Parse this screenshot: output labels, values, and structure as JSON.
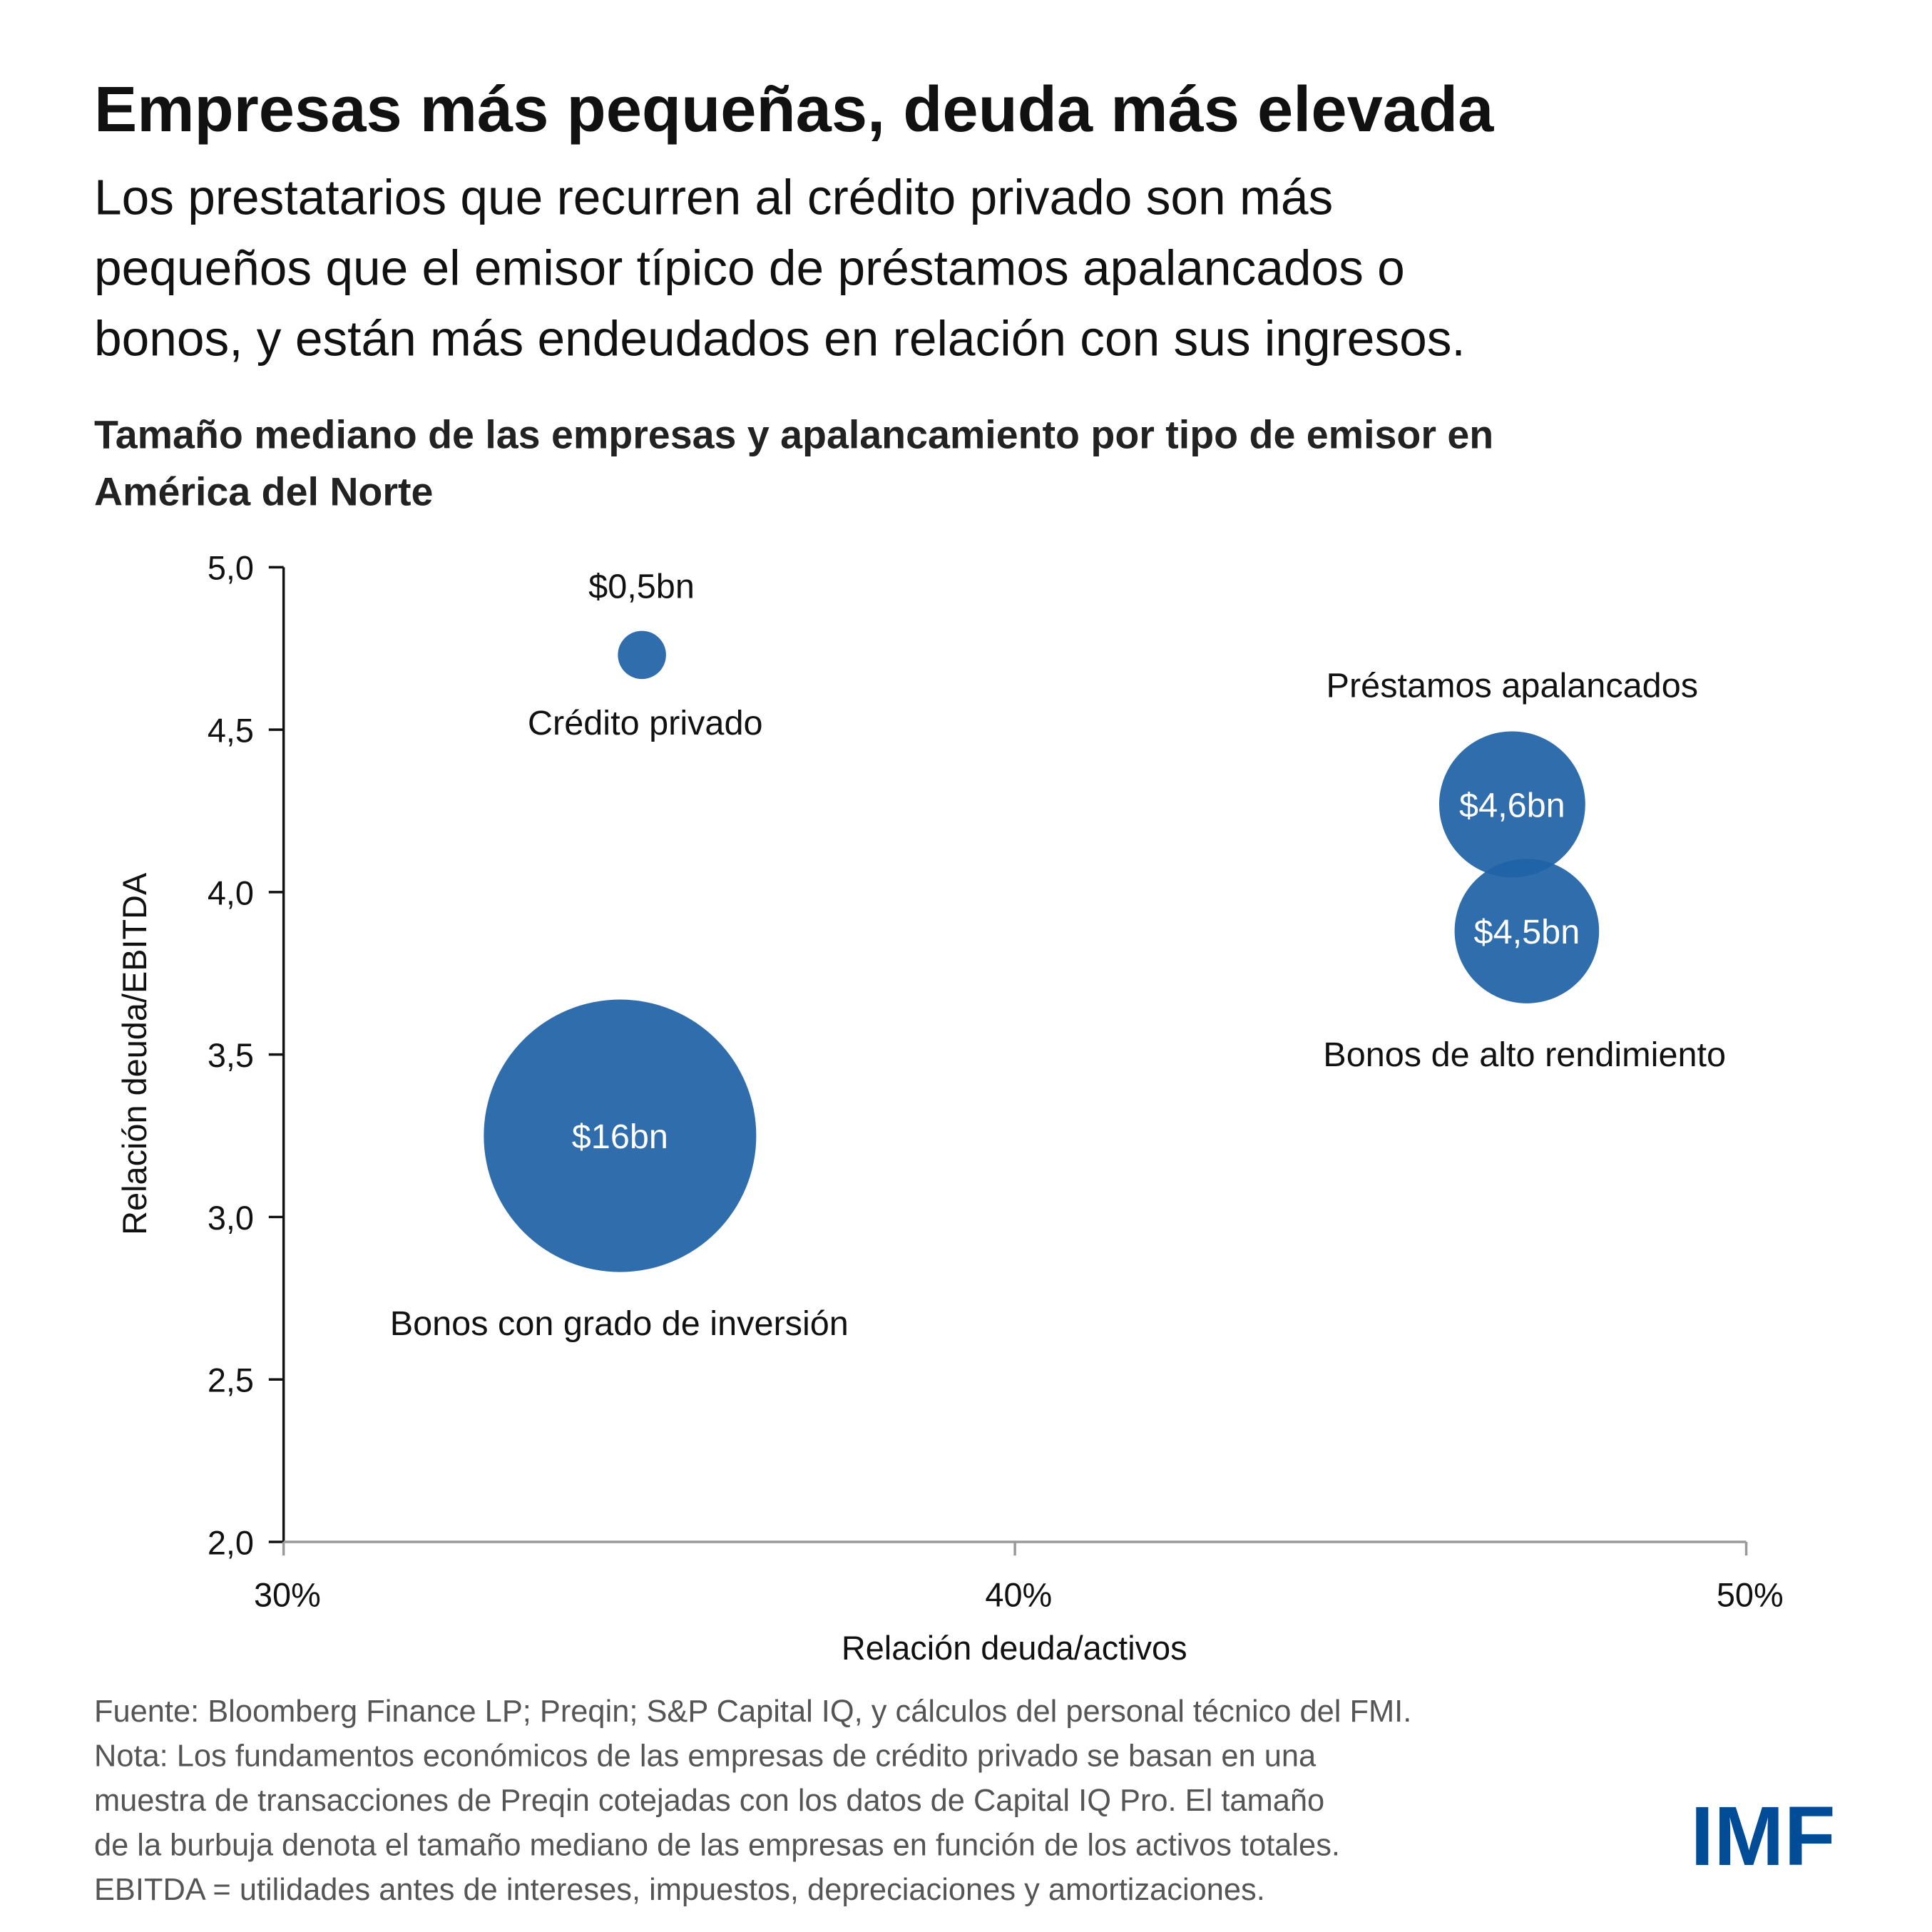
{
  "title": "Empresas más pequeñas, deuda más elevada",
  "subtitle_lines": [
    "Los prestatarios que recurren al crédito privado son más",
    "pequeños que el emisor típico de préstamos apalancados o",
    "bonos, y están más endeudados en relación con sus ingresos."
  ],
  "notes": [
    "Fuente: Bloomberg Finance LP; Preqin; S&P Capital IQ, y cálculos del personal técnico del FMI.",
    "Nota: Los fundamentos económicos de las empresas de crédito privado se basan en una",
    "muestra de transacciones de Preqin cotejadas con los datos de Capital IQ Pro. El tamaño",
    "de la burbuja denota el tamaño mediano de las empresas en función de los activos totales.",
    "EBITDA = utilidades antes de intereses, impuestos, depreciaciones y amortizaciones."
  ],
  "logo": "IMF",
  "colors": {
    "bubble": "#2B6AA8",
    "logo": "#004C97"
  },
  "chart_data": {
    "type": "bubble",
    "title_lines": [
      "Tamaño mediano de las empresas y apalancamiento por tipo de emisor en",
      "América del Norte"
    ],
    "xlabel": "Relación deuda/activos",
    "ylabel": "Relación deuda/EBITDA",
    "xlim": [
      30,
      50
    ],
    "ylim": [
      2.0,
      5.0
    ],
    "xticks": [
      "30%",
      "40%",
      "50%"
    ],
    "yticks": [
      "2,0",
      "2,5",
      "3,0",
      "3,5",
      "4,0",
      "4,5",
      "5,0"
    ],
    "grid": false,
    "points": [
      {
        "name": "Crédito privado",
        "x": 34.9,
        "y": 4.73,
        "size": 0.5,
        "size_label": "$0,5bn"
      },
      {
        "name": "Bonos con grado de inversión",
        "x": 34.6,
        "y": 3.25,
        "size": 16,
        "size_label": "$16bn"
      },
      {
        "name": "Préstamos apalancados",
        "x": 46.8,
        "y": 4.27,
        "size": 4.6,
        "size_label": "$4,6bn"
      },
      {
        "name": "Bonos de alto rendimiento",
        "x": 47.0,
        "y": 3.88,
        "size": 4.5,
        "size_label": "$4,5bn"
      }
    ]
  }
}
